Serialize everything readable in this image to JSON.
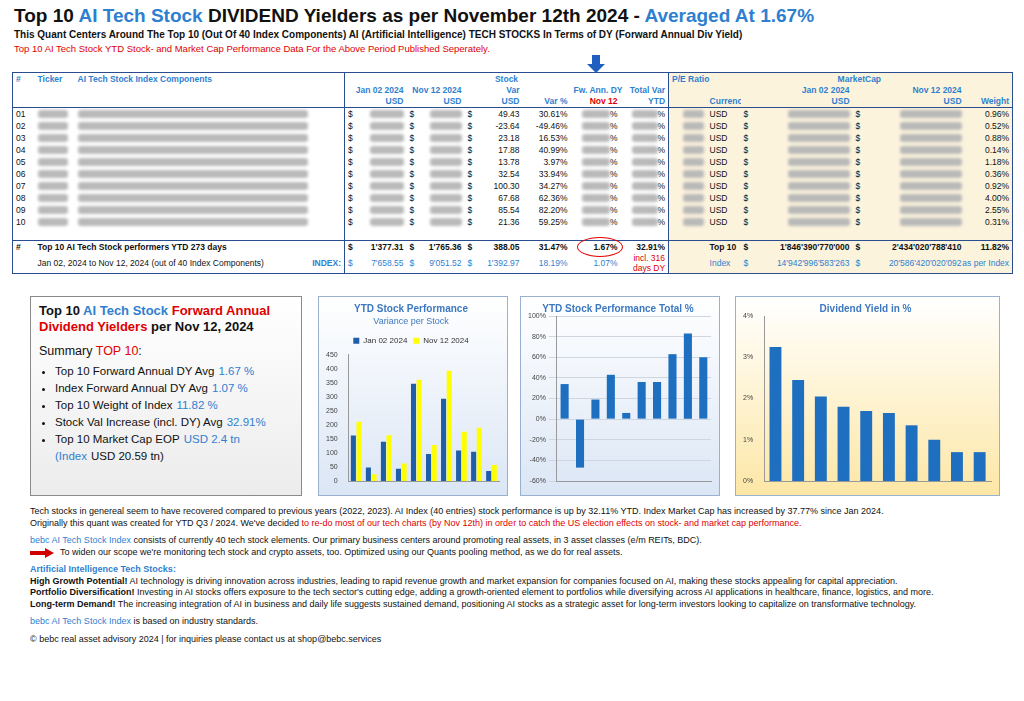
{
  "header": {
    "title": [
      {
        "text": "Top 10 "
      },
      {
        "text": "AI Tech Stock",
        "color": "#2f7fd0"
      },
      {
        "text": " DIVIDEND Yielders as per November 12th 2024 - "
      },
      {
        "text": "Averaged At 1.67%",
        "color": "#2f7fd0"
      }
    ],
    "subtitle": "This Quant Centers Around The Top 10 (Out Of 40 Index Components) AI (Artificial Intelligence) TECH STOCKS In Terms of DY (Forward Annual Div Yield)",
    "note": "Top 10 AI Tech Stock YTD Stock- and Market Cap Performance Data For the Above Period Published Seperately."
  },
  "table": {
    "top_headers": [
      {
        "text": "#",
        "span": 1
      },
      {
        "text": "Ticker",
        "span": 1
      },
      {
        "text": "AI Tech Stock Index Components",
        "span": 1
      },
      {
        "text": "Stock",
        "span": 6
      },
      {
        "text": "P/E Ratio",
        "span": 1
      },
      {
        "text": "MarketCap",
        "span": 4
      }
    ],
    "columns": [
      {
        "header": []
      },
      {
        "header": []
      },
      {
        "header": []
      },
      {
        "header": [
          {
            "text": "Jan 02 2024"
          },
          {
            "text": "USD"
          }
        ],
        "prefix": "$"
      },
      {
        "header": [
          {
            "text": "Nov 12 2024"
          },
          {
            "text": "USD"
          }
        ],
        "prefix": "$"
      },
      {
        "header": [
          {
            "text": "Var"
          },
          {
            "text": "USD"
          }
        ],
        "prefix": "$"
      },
      {
        "header": [
          {
            "text": "Var %"
          }
        ]
      },
      {
        "header": [
          {
            "text": "Fw. Ann. DY"
          },
          {
            "text": "Nov 12",
            "color": "#e00000"
          }
        ],
        "masked_suffix": "%"
      },
      {
        "header": [
          {
            "text": "Total Var"
          },
          {
            "text": "YTD"
          }
        ],
        "masked_suffix": "%"
      },
      {
        "header": []
      },
      {
        "header": [
          {
            "text": "Currency"
          }
        ]
      },
      {
        "header": [
          {
            "text": "Jan 02 2024"
          },
          {
            "text": "USD"
          }
        ],
        "prefix": "$"
      },
      {
        "header": [
          {
            "text": "Nov 12 2024"
          },
          {
            "text": "USD"
          }
        ],
        "prefix": "$"
      },
      {
        "header": [
          {
            "text": "Weight"
          }
        ]
      }
    ],
    "rows": [
      [
        "01",
        null,
        null,
        null,
        null,
        "49.43",
        "30.61%",
        null,
        null,
        null,
        "USD",
        null,
        null,
        "0.96%"
      ],
      [
        "02",
        null,
        null,
        null,
        null,
        "-23.64",
        "-49.46%",
        null,
        null,
        null,
        "USD",
        null,
        null,
        "0.52%"
      ],
      [
        "03",
        null,
        null,
        null,
        null,
        "23.18",
        "16.53%",
        null,
        null,
        null,
        "USD",
        null,
        null,
        "0.88%"
      ],
      [
        "04",
        null,
        null,
        null,
        null,
        "17.88",
        "40.99%",
        null,
        null,
        null,
        "USD",
        null,
        null,
        "0.14%"
      ],
      [
        "05",
        null,
        null,
        null,
        null,
        "13.78",
        "3.97%",
        null,
        null,
        null,
        "USD",
        null,
        null,
        "1.18%"
      ],
      [
        "06",
        null,
        null,
        null,
        null,
        "32.54",
        "33.94%",
        null,
        null,
        null,
        "USD",
        null,
        null,
        "0.36%"
      ],
      [
        "07",
        null,
        null,
        null,
        null,
        "100.30",
        "34.27%",
        null,
        null,
        null,
        "USD",
        null,
        null,
        "0.92%"
      ],
      [
        "08",
        null,
        null,
        null,
        null,
        "67.68",
        "62.36%",
        null,
        null,
        null,
        "USD",
        null,
        null,
        "4.00%"
      ],
      [
        "09",
        null,
        null,
        null,
        null,
        "85.54",
        "82.20%",
        null,
        null,
        null,
        "USD",
        null,
        null,
        "2.55%"
      ],
      [
        "10",
        null,
        null,
        null,
        null,
        "21.36",
        "59.25%",
        null,
        null,
        null,
        "USD",
        null,
        null,
        "0.31%"
      ]
    ],
    "summary": [
      {
        "marker": "#",
        "label": "Top 10 AI Tech Stock performers YTD 273 days",
        "values": [
          "1'377.31",
          "1'765.36",
          "388.05",
          "31.47%",
          "1.67%",
          "32.91%",
          null,
          "Top 10",
          "1'846'390'770'000",
          "2'434'020'788'410",
          "11.82%"
        ]
      },
      {
        "label": "Jan 02, 2024 to Nov 12, 2024 (out of 40 Index Components)",
        "tag": "INDEX:",
        "color": "#2f7fd0",
        "values": [
          "7'658.55",
          "9'051.52",
          "1'392.97",
          "18.19%",
          "1.07%",
          {
            "text": "incl. 316 days DY",
            "color": "#e00000"
          },
          null,
          "Index",
          "14'942'996'583'263",
          "20'586'420'020'092",
          "as per Index"
        ]
      }
    ]
  },
  "summary_box": {
    "title": [
      {
        "text": "Top 10 "
      },
      {
        "text": "AI Tech Stock",
        "color": "#2f7fd0"
      },
      {
        "text": " Forward Annual Dividend Yielders",
        "color": "#e00000"
      },
      {
        "text": " per Nov 12, 2024"
      }
    ],
    "heading": [
      {
        "text": "Summary "
      },
      {
        "text": "TOP 10",
        "color": "#e00000"
      },
      {
        "text": ":"
      }
    ],
    "items": [
      {
        "label": "Top 10 Forward Annual DY Avg",
        "value": "1.67 %"
      },
      {
        "label": "Index Forward Annual DY Avg",
        "value": "1.07 %"
      },
      {
        "label": "Top 10 Weight of Index",
        "value": "11.82 %"
      },
      {
        "label": "Stock Val Increase (incl. DY) Avg",
        "value": "32.91%"
      },
      {
        "label": "Top 10 Market Cap EOP",
        "value": "USD 2.4 tn (Index",
        "rest": "USD 20.59 tn)"
      }
    ]
  },
  "chart_data": [
    {
      "type": "bar",
      "title": "YTD Stock Performance",
      "subtitle": "Variance per Stock",
      "categories": [
        null,
        null,
        null,
        null,
        null,
        null,
        null,
        null,
        null,
        null
      ],
      "series": [
        {
          "name": "Jan 02 2024",
          "color": "#1f5fa8",
          "values": [
            162,
            48,
            140,
            44,
            347,
            96,
            293,
            109,
            104,
            36
          ]
        },
        {
          "name": "Nov 12 2024",
          "color": "#ffff00",
          "values": [
            211,
            24,
            163,
            62,
            361,
            128,
            393,
            176,
            190,
            57
          ]
        }
      ],
      "ylim": [
        0,
        450
      ],
      "yticks": [
        0,
        50,
        100,
        150,
        200,
        250,
        300,
        350,
        400,
        450
      ],
      "grid": false,
      "legend": "top",
      "tick_labels": "y"
    },
    {
      "type": "bar",
      "title": "YTD Stock Performance Total %",
      "categories": [
        null,
        null,
        null,
        null,
        null,
        null,
        null,
        null,
        null,
        null
      ],
      "values": [
        34,
        -47,
        19,
        43,
        6,
        36,
        36,
        63,
        83,
        60
      ],
      "color": "#1f6fc0",
      "ylim": [
        -60,
        100
      ],
      "yticks": [
        {
          "value": -60,
          "label": "-60%"
        },
        {
          "value": -40,
          "label": "-40%"
        },
        {
          "value": -20,
          "label": "-20%"
        },
        {
          "value": 0,
          "label": "0%"
        },
        {
          "value": 20,
          "label": "20%"
        },
        {
          "value": 40,
          "label": "40%"
        },
        {
          "value": 60,
          "label": "60%"
        },
        {
          "value": 80,
          "label": "80%"
        },
        {
          "value": 100,
          "label": "100%"
        }
      ],
      "grid": true,
      "tick_labels": "y"
    },
    {
      "type": "bar",
      "title": "Dividend Yield in %",
      "categories": [
        null,
        null,
        null,
        null,
        null,
        null,
        null,
        null,
        null,
        null
      ],
      "values": [
        3.25,
        2.45,
        2.05,
        1.8,
        1.7,
        1.65,
        1.35,
        1.0,
        0.7,
        0.7
      ],
      "color": "#1f6fc0",
      "ylim": [
        0,
        4
      ],
      "yticks": [
        {
          "value": 0,
          "label": "0%"
        },
        {
          "value": 1,
          "label": "1%"
        },
        {
          "value": 2,
          "label": "2%"
        },
        {
          "value": 3,
          "label": "3%"
        },
        {
          "value": 4,
          "label": "4%"
        }
      ],
      "grid": false,
      "tick_labels": "y"
    }
  ],
  "footer": {
    "notes": [
      [
        {
          "text": "Tech stocks in genereal seem to have recovered compared to previous years (2022, 2023). AI Index (40 entries) stock performance is up by  32.11% YTD. Index Market Cap has increased by 37.77% since Jan 2024."
        }
      ],
      [
        {
          "text": "Originally this quant was created for YTD Q3 / 2024. We've decided "
        },
        {
          "text": "to re-do most of our tech charts (by Nov 12th) in order to catch the US election effects on stock- and market cap performance.",
          "color": "#e00000"
        }
      ]
    ],
    "index_info": [
      {
        "text": "bebc AI Tech Stock Index",
        "color": "#2f7fd0"
      },
      {
        "text": " consists of currently 40 tech stock elements. Our primary business centers around promoting real assets, in 3 asset classes (e/m REITs, BDC)."
      }
    ],
    "arrow_line": "To widen our scope we're monitoring tech stock and crypto assets, too. Optimized using our Quants pooling method, as we do for real assets.",
    "section_title": "Artificial Intelligence Tech Stocks:",
    "points": [
      {
        "lead": "High Growth Potential!",
        "text": " AI technology is driving innovation across industries, leading to rapid revenue growth and market expansion for companies focused on AI, making these stocks appealing for capital appreciation."
      },
      {
        "lead": "Portfolio Diversification!",
        "text": " Investing in AI stocks offers exposure to the tech sector's cutting edge, adding a growth-oriented element to portfolios while diversifying across AI applications in healthcare, finance, logistics, and more."
      },
      {
        "lead": "Long-term Demand!",
        "text": " The increasing integration of AI in business and daily life suggests sustained demand, positioning AI stocks as a strategic asset for long-term investors looking to capitalize on transformative technology."
      }
    ],
    "closing": [
      {
        "text": "bebc AI Tech Stock Index",
        "color": "#2f7fd0"
      },
      {
        "text": " is based on industry standards."
      }
    ],
    "copyright": "© bebc real asset advisory 2024 | for inquiries please contact us at shop@bebc.services"
  }
}
